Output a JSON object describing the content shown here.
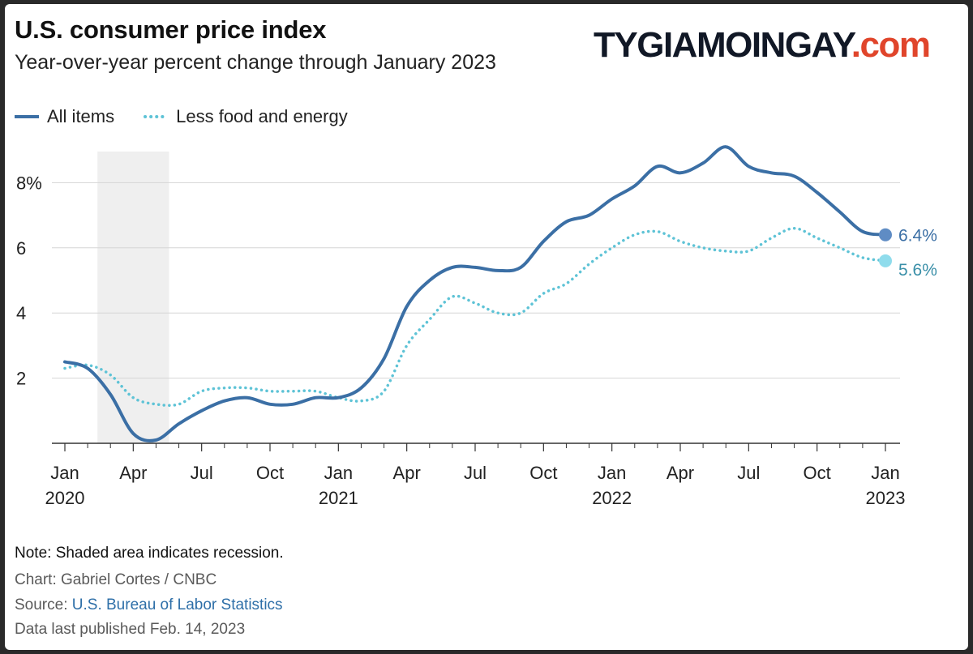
{
  "header": {
    "title": "U.S. consumer price index",
    "subtitle": "Year-over-year percent change through January 2023"
  },
  "watermark": {
    "main": "TYGIAMOINGAY",
    "suffix": ".com"
  },
  "legend": [
    {
      "label": "All items",
      "color": "#3b6fa5",
      "style": "solid"
    },
    {
      "label": "Less food and energy",
      "color": "#5ec3d6",
      "style": "dotted"
    }
  ],
  "chart_data": {
    "type": "line",
    "title": "U.S. consumer price index",
    "subtitle": "Year-over-year percent change through January 2023",
    "xlabel": "",
    "ylabel": "Year-over-year percent change",
    "x": [
      "2020-01",
      "2020-02",
      "2020-03",
      "2020-04",
      "2020-05",
      "2020-06",
      "2020-07",
      "2020-08",
      "2020-09",
      "2020-10",
      "2020-11",
      "2020-12",
      "2021-01",
      "2021-02",
      "2021-03",
      "2021-04",
      "2021-05",
      "2021-06",
      "2021-07",
      "2021-08",
      "2021-09",
      "2021-10",
      "2021-11",
      "2021-12",
      "2022-01",
      "2022-02",
      "2022-03",
      "2022-04",
      "2022-05",
      "2022-06",
      "2022-07",
      "2022-08",
      "2022-09",
      "2022-10",
      "2022-11",
      "2022-12",
      "2023-01"
    ],
    "series": [
      {
        "name": "All items",
        "color": "#3b6fa5",
        "values": [
          2.5,
          2.3,
          1.5,
          0.3,
          0.1,
          0.6,
          1.0,
          1.3,
          1.4,
          1.2,
          1.2,
          1.4,
          1.4,
          1.7,
          2.6,
          4.2,
          5.0,
          5.4,
          5.4,
          5.3,
          5.4,
          6.2,
          6.8,
          7.0,
          7.5,
          7.9,
          8.5,
          8.3,
          8.6,
          9.1,
          8.5,
          8.3,
          8.2,
          7.7,
          7.1,
          6.5,
          6.4
        ]
      },
      {
        "name": "Less food and energy",
        "color": "#5ec3d6",
        "values": [
          2.3,
          2.4,
          2.1,
          1.4,
          1.2,
          1.2,
          1.6,
          1.7,
          1.7,
          1.6,
          1.6,
          1.6,
          1.4,
          1.3,
          1.6,
          3.0,
          3.8,
          4.5,
          4.3,
          4.0,
          4.0,
          4.6,
          4.9,
          5.5,
          6.0,
          6.4,
          6.5,
          6.2,
          6.0,
          5.9,
          5.9,
          6.3,
          6.6,
          6.3,
          6.0,
          5.7,
          5.6
        ]
      }
    ],
    "y_ticks": [
      {
        "value": 2,
        "label": "2"
      },
      {
        "value": 4,
        "label": "4"
      },
      {
        "value": 6,
        "label": "6"
      },
      {
        "value": 8,
        "label": "8%"
      }
    ],
    "ylim": [
      0,
      9.5
    ],
    "x_ticks": [
      {
        "index": 0,
        "label": "Jan",
        "year": "2020"
      },
      {
        "index": 3,
        "label": "Apr",
        "year": ""
      },
      {
        "index": 6,
        "label": "Jul",
        "year": ""
      },
      {
        "index": 9,
        "label": "Oct",
        "year": ""
      },
      {
        "index": 12,
        "label": "Jan",
        "year": "2021"
      },
      {
        "index": 15,
        "label": "Apr",
        "year": ""
      },
      {
        "index": 18,
        "label": "Jul",
        "year": ""
      },
      {
        "index": 21,
        "label": "Oct",
        "year": ""
      },
      {
        "index": 24,
        "label": "Jan",
        "year": "2022"
      },
      {
        "index": 27,
        "label": "Apr",
        "year": ""
      },
      {
        "index": 30,
        "label": "Jul",
        "year": ""
      },
      {
        "index": 33,
        "label": "Oct",
        "year": ""
      },
      {
        "index": 36,
        "label": "Jan",
        "year": "2023"
      }
    ],
    "recession": {
      "start": "2020-02",
      "end": "2020-04",
      "from_index": 2,
      "to_index": 4
    },
    "end_labels": [
      {
        "series": "All items",
        "text": "6.4%",
        "color": "#3b6fa5"
      },
      {
        "series": "Less food and energy",
        "text": "5.6%",
        "color": "#3a8fa8"
      }
    ],
    "grid": true,
    "legend_position": "top-left"
  },
  "footer": {
    "note": "Note: Shaded area indicates recession.",
    "credit": "Chart: Gabriel Cortes / CNBC",
    "source_prefix": "Source: ",
    "source_link": "U.S. Bureau of Labor Statistics",
    "published": "Data last published Feb. 14, 2023"
  }
}
